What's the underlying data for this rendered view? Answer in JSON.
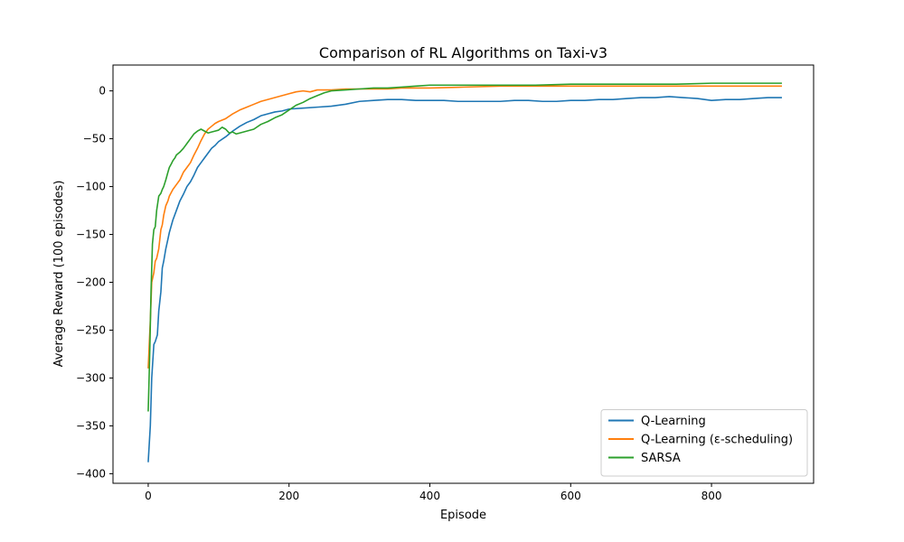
{
  "chart_data": {
    "type": "line",
    "title": "Comparison of RL Algorithms on Taxi-v3",
    "xlabel": "Episode",
    "ylabel": "Average Reward (100 episodes)",
    "xlim": [
      -50,
      945
    ],
    "ylim": [
      -410,
      27
    ],
    "xticks": [
      0,
      200,
      400,
      600,
      800
    ],
    "yticks": [
      0,
      -50,
      -100,
      -150,
      -200,
      -250,
      -300,
      -350,
      -400
    ],
    "grid": false,
    "legend_position": "lower-right",
    "series": [
      {
        "name": "Q-Learning",
        "color": "#1f77b4",
        "x": [
          0,
          3,
          5,
          8,
          10,
          13,
          15,
          18,
          20,
          22,
          25,
          28,
          30,
          35,
          40,
          45,
          50,
          55,
          60,
          65,
          70,
          75,
          80,
          85,
          90,
          95,
          100,
          110,
          120,
          130,
          140,
          150,
          160,
          170,
          180,
          190,
          200,
          220,
          240,
          260,
          280,
          300,
          320,
          340,
          360,
          380,
          400,
          420,
          440,
          460,
          480,
          500,
          520,
          540,
          560,
          580,
          600,
          620,
          640,
          660,
          680,
          700,
          720,
          740,
          760,
          780,
          800,
          820,
          840,
          860,
          880,
          900
        ],
        "y": [
          -388,
          -350,
          -300,
          -265,
          -262,
          -255,
          -230,
          -210,
          -185,
          -178,
          -165,
          -155,
          -148,
          -135,
          -125,
          -115,
          -108,
          -100,
          -95,
          -88,
          -80,
          -75,
          -70,
          -65,
          -60,
          -57,
          -53,
          -48,
          -42,
          -37,
          -33,
          -30,
          -26,
          -24,
          -22,
          -21,
          -19,
          -18,
          -17,
          -16,
          -14,
          -11,
          -10,
          -9,
          -9,
          -10,
          -10,
          -10,
          -11,
          -11,
          -11,
          -11,
          -10,
          -10,
          -11,
          -11,
          -10,
          -10,
          -9,
          -9,
          -8,
          -7,
          -7,
          -6,
          -7,
          -8,
          -10,
          -9,
          -9,
          -8,
          -7,
          -7
        ]
      },
      {
        "name": "Q-Learning (ε-scheduling)",
        "color": "#ff7f0e",
        "x": [
          0,
          3,
          5,
          8,
          10,
          12,
          15,
          18,
          20,
          22,
          25,
          28,
          30,
          35,
          40,
          45,
          50,
          55,
          60,
          65,
          70,
          75,
          80,
          85,
          90,
          95,
          100,
          110,
          120,
          130,
          140,
          150,
          160,
          170,
          180,
          190,
          200,
          210,
          220,
          230,
          240,
          260,
          280,
          300,
          320,
          340,
          360,
          380,
          400,
          450,
          500,
          550,
          600,
          650,
          700,
          750,
          800,
          850,
          900
        ],
        "y": [
          -290,
          -240,
          -200,
          -190,
          -178,
          -175,
          -165,
          -145,
          -140,
          -130,
          -120,
          -115,
          -110,
          -103,
          -98,
          -93,
          -85,
          -80,
          -75,
          -67,
          -60,
          -52,
          -45,
          -40,
          -37,
          -34,
          -32,
          -29,
          -24,
          -20,
          -17,
          -14,
          -11,
          -9,
          -7,
          -5,
          -3,
          -1,
          0,
          -1,
          1,
          1,
          2,
          2,
          2,
          2,
          3,
          3,
          3,
          4,
          5,
          5,
          5,
          5,
          5,
          5,
          5,
          5,
          5
        ]
      },
      {
        "name": "SARSA",
        "color": "#2ca02c",
        "x": [
          0,
          2,
          4,
          6,
          8,
          10,
          12,
          15,
          18,
          20,
          22,
          25,
          28,
          30,
          33,
          35,
          38,
          40,
          45,
          50,
          55,
          60,
          65,
          70,
          75,
          80,
          85,
          90,
          95,
          100,
          105,
          110,
          115,
          120,
          125,
          130,
          140,
          150,
          160,
          170,
          180,
          190,
          200,
          210,
          220,
          230,
          240,
          250,
          260,
          280,
          300,
          320,
          340,
          360,
          380,
          400,
          450,
          500,
          550,
          600,
          650,
          700,
          750,
          800,
          850,
          900
        ],
        "y": [
          -335,
          -280,
          -210,
          -160,
          -145,
          -142,
          -125,
          -110,
          -107,
          -103,
          -100,
          -93,
          -85,
          -80,
          -76,
          -73,
          -70,
          -67,
          -64,
          -60,
          -55,
          -50,
          -45,
          -42,
          -40,
          -42,
          -44,
          -43,
          -42,
          -41,
          -38,
          -40,
          -44,
          -43,
          -45,
          -44,
          -42,
          -40,
          -35,
          -32,
          -28,
          -25,
          -20,
          -15,
          -12,
          -8,
          -5,
          -2,
          0,
          1,
          2,
          3,
          3,
          4,
          5,
          6,
          6,
          6,
          6,
          7,
          7,
          7,
          7,
          8,
          8,
          8
        ]
      }
    ]
  }
}
